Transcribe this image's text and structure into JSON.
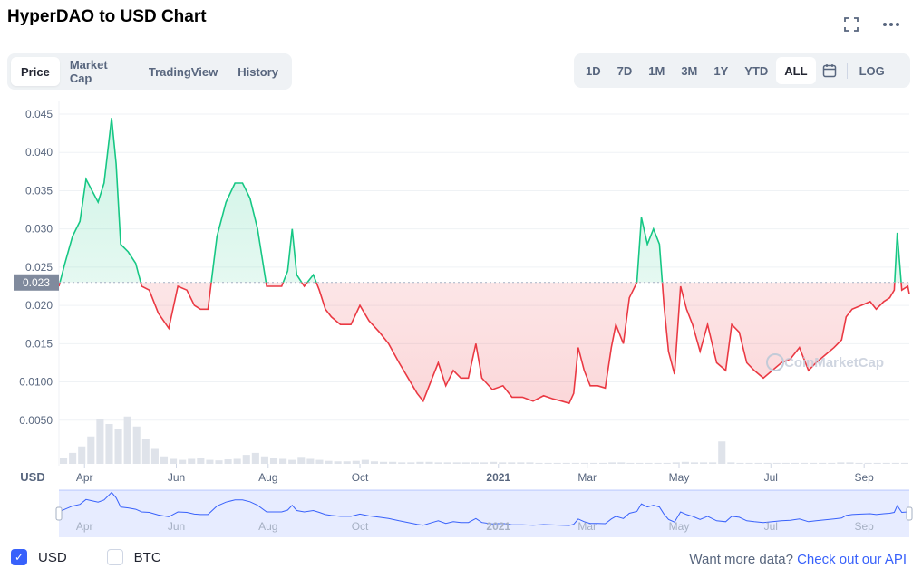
{
  "header": {
    "title": "HyperDAO to USD Chart",
    "expand_icon": "expand-icon",
    "more_icon": "more-icon"
  },
  "tabs": [
    {
      "label": "Price",
      "active": true
    },
    {
      "label": "Market Cap",
      "active": false
    },
    {
      "label": "TradingView",
      "active": false
    },
    {
      "label": "History",
      "active": false
    }
  ],
  "ranges": [
    {
      "label": "1D",
      "active": false
    },
    {
      "label": "7D",
      "active": false
    },
    {
      "label": "1M",
      "active": false
    },
    {
      "label": "3M",
      "active": false
    },
    {
      "label": "1Y",
      "active": false
    },
    {
      "label": "YTD",
      "active": false
    },
    {
      "label": "ALL",
      "active": true
    }
  ],
  "calendar_icon": "calendar-icon",
  "log_label": "LOG",
  "legend": {
    "usd_label": "USD",
    "usd_checked": true,
    "btc_label": "BTC",
    "btc_checked": false
  },
  "footer": {
    "prompt": "Want more data?",
    "link": "Check out our API"
  },
  "watermark": "CoinMarketCap",
  "colors": {
    "up": "#16c784",
    "down": "#ea3943",
    "brush": "#3861fb",
    "axis_badge": "#808a9d"
  },
  "chart_data": {
    "type": "line",
    "baseline": 0.023,
    "baseline_label": "0.023",
    "currency_label": "USD",
    "ylim": [
      0,
      0.047
    ],
    "yticks": [
      {
        "value": 0.045,
        "label": "0.045"
      },
      {
        "value": 0.04,
        "label": "0.040"
      },
      {
        "value": 0.035,
        "label": "0.035"
      },
      {
        "value": 0.03,
        "label": "0.030"
      },
      {
        "value": 0.025,
        "label": "0.025"
      },
      {
        "value": 0.02,
        "label": "0.020"
      },
      {
        "value": 0.015,
        "label": "0.015"
      },
      {
        "value": 0.01,
        "label": "0.0100"
      },
      {
        "value": 0.005,
        "label": "0.0050"
      }
    ],
    "x_start": "2020-03-15",
    "x_end": "2021-10-01",
    "xticks": [
      {
        "date": "2020-04-01",
        "label": "Apr",
        "bold": false
      },
      {
        "date": "2020-06-01",
        "label": "Jun",
        "bold": false
      },
      {
        "date": "2020-08-01",
        "label": "Aug",
        "bold": false
      },
      {
        "date": "2020-10-01",
        "label": "Oct",
        "bold": false
      },
      {
        "date": "2021-01-01",
        "label": "2021",
        "bold": true
      },
      {
        "date": "2021-03-01",
        "label": "Mar",
        "bold": false
      },
      {
        "date": "2021-05-01",
        "label": "May",
        "bold": false
      },
      {
        "date": "2021-07-01",
        "label": "Jul",
        "bold": false
      },
      {
        "date": "2021-09-01",
        "label": "Sep",
        "bold": false
      }
    ],
    "series": [
      {
        "name": "",
        "points": [
          [
            "2020-03-15",
            0.0225
          ],
          [
            "2020-03-19",
            0.0255
          ],
          [
            "2020-03-24",
            0.029
          ],
          [
            "2020-03-29",
            0.031
          ],
          [
            "2020-04-02",
            0.0365
          ],
          [
            "2020-04-06",
            0.035
          ],
          [
            "2020-04-10",
            0.0335
          ],
          [
            "2020-04-14",
            0.036
          ],
          [
            "2020-04-19",
            0.0445
          ],
          [
            "2020-04-22",
            0.0385
          ],
          [
            "2020-04-25",
            0.028
          ],
          [
            "2020-04-30",
            0.027
          ],
          [
            "2020-05-05",
            0.0255
          ],
          [
            "2020-05-09",
            0.0225
          ],
          [
            "2020-05-14",
            0.022
          ],
          [
            "2020-05-20",
            0.019
          ],
          [
            "2020-05-27",
            0.017
          ],
          [
            "2020-06-02",
            0.0225
          ],
          [
            "2020-06-08",
            0.022
          ],
          [
            "2020-06-13",
            0.02
          ],
          [
            "2020-06-17",
            0.0195
          ],
          [
            "2020-06-22",
            0.0195
          ],
          [
            "2020-06-28",
            0.029
          ],
          [
            "2020-07-04",
            0.0335
          ],
          [
            "2020-07-10",
            0.036
          ],
          [
            "2020-07-15",
            0.036
          ],
          [
            "2020-07-20",
            0.034
          ],
          [
            "2020-07-25",
            0.03
          ],
          [
            "2020-07-31",
            0.0225
          ],
          [
            "2020-08-05",
            0.0225
          ],
          [
            "2020-08-10",
            0.0225
          ],
          [
            "2020-08-14",
            0.0245
          ],
          [
            "2020-08-17",
            0.03
          ],
          [
            "2020-08-20",
            0.024
          ],
          [
            "2020-08-25",
            0.0225
          ],
          [
            "2020-08-31",
            0.024
          ],
          [
            "2020-09-04",
            0.022
          ],
          [
            "2020-09-08",
            0.0195
          ],
          [
            "2020-09-12",
            0.0185
          ],
          [
            "2020-09-18",
            0.0175
          ],
          [
            "2020-09-25",
            0.0175
          ],
          [
            "2020-10-01",
            0.02
          ],
          [
            "2020-10-07",
            0.018
          ],
          [
            "2020-10-14",
            0.0165
          ],
          [
            "2020-10-20",
            0.015
          ],
          [
            "2020-10-27",
            0.0125
          ],
          [
            "2020-11-02",
            0.0105
          ],
          [
            "2020-11-08",
            0.0085
          ],
          [
            "2020-11-12",
            0.0075
          ],
          [
            "2020-11-18",
            0.0105
          ],
          [
            "2020-11-22",
            0.0125
          ],
          [
            "2020-11-27",
            0.0095
          ],
          [
            "2020-12-02",
            0.0115
          ],
          [
            "2020-12-07",
            0.0105
          ],
          [
            "2020-12-12",
            0.0105
          ],
          [
            "2020-12-17",
            0.015
          ],
          [
            "2020-12-21",
            0.0105
          ],
          [
            "2020-12-28",
            0.009
          ],
          [
            "2021-01-04",
            0.0095
          ],
          [
            "2021-01-10",
            0.008
          ],
          [
            "2021-01-17",
            0.008
          ],
          [
            "2021-01-24",
            0.0075
          ],
          [
            "2021-01-31",
            0.0082
          ],
          [
            "2021-02-06",
            0.0078
          ],
          [
            "2021-02-12",
            0.0075
          ],
          [
            "2021-02-17",
            0.0072
          ],
          [
            "2021-02-20",
            0.0085
          ],
          [
            "2021-02-23",
            0.0145
          ],
          [
            "2021-02-27",
            0.0115
          ],
          [
            "2021-03-03",
            0.0095
          ],
          [
            "2021-03-08",
            0.0095
          ],
          [
            "2021-03-13",
            0.0092
          ],
          [
            "2021-03-17",
            0.0145
          ],
          [
            "2021-03-20",
            0.0175
          ],
          [
            "2021-03-25",
            0.015
          ],
          [
            "2021-03-29",
            0.021
          ],
          [
            "2021-04-03",
            0.023
          ],
          [
            "2021-04-06",
            0.0315
          ],
          [
            "2021-04-10",
            0.028
          ],
          [
            "2021-04-14",
            0.03
          ],
          [
            "2021-04-18",
            0.028
          ],
          [
            "2021-04-21",
            0.02
          ],
          [
            "2021-04-24",
            0.014
          ],
          [
            "2021-04-28",
            0.011
          ],
          [
            "2021-05-02",
            0.0225
          ],
          [
            "2021-05-06",
            0.0195
          ],
          [
            "2021-05-10",
            0.0175
          ],
          [
            "2021-05-15",
            0.014
          ],
          [
            "2021-05-20",
            0.0175
          ],
          [
            "2021-05-26",
            0.0125
          ],
          [
            "2021-06-01",
            0.0115
          ],
          [
            "2021-06-05",
            0.0175
          ],
          [
            "2021-06-10",
            0.0165
          ],
          [
            "2021-06-15",
            0.0125
          ],
          [
            "2021-06-20",
            0.0115
          ],
          [
            "2021-06-26",
            0.0105
          ],
          [
            "2021-07-02",
            0.0115
          ],
          [
            "2021-07-08",
            0.0125
          ],
          [
            "2021-07-14",
            0.013
          ],
          [
            "2021-07-20",
            0.0145
          ],
          [
            "2021-07-26",
            0.0115
          ],
          [
            "2021-07-31",
            0.0125
          ],
          [
            "2021-08-06",
            0.0135
          ],
          [
            "2021-08-12",
            0.0145
          ],
          [
            "2021-08-17",
            0.0155
          ],
          [
            "2021-08-20",
            0.0185
          ],
          [
            "2021-08-24",
            0.0195
          ],
          [
            "2021-08-30",
            0.02
          ],
          [
            "2021-09-05",
            0.0205
          ],
          [
            "2021-09-09",
            0.0195
          ],
          [
            "2021-09-14",
            0.0205
          ],
          [
            "2021-09-18",
            0.021
          ],
          [
            "2021-09-21",
            0.022
          ],
          [
            "2021-09-23",
            0.0295
          ],
          [
            "2021-09-26",
            0.022
          ],
          [
            "2021-09-30",
            0.0225
          ],
          [
            "2021-10-01",
            0.0215
          ]
        ]
      }
    ],
    "volume": [
      0.12,
      0.22,
      0.35,
      0.55,
      0.9,
      0.8,
      0.7,
      0.95,
      0.75,
      0.5,
      0.3,
      0.15,
      0.1,
      0.08,
      0.1,
      0.12,
      0.08,
      0.07,
      0.09,
      0.1,
      0.18,
      0.22,
      0.15,
      0.12,
      0.1,
      0.08,
      0.14,
      0.1,
      0.08,
      0.06,
      0.05,
      0.05,
      0.06,
      0.08,
      0.05,
      0.04,
      0.04,
      0.03,
      0.03,
      0.04,
      0.04,
      0.03,
      0.03,
      0.03,
      0.03,
      0.03,
      0.03,
      0.04,
      0.03,
      0.03,
      0.03,
      0.03,
      0.02,
      0.02,
      0.02,
      0.02,
      0.02,
      0.02,
      0.02,
      0.02,
      0.03,
      0.03,
      0.02,
      0.02,
      0.02,
      0.02,
      0.02,
      0.03,
      0.04,
      0.03,
      0.03,
      0.03,
      0.45,
      0.03,
      0.02,
      0.02,
      0.02,
      0.02,
      0.02,
      0.02,
      0.02,
      0.02,
      0.02,
      0.02,
      0.02,
      0.03,
      0.03,
      0.02,
      0.02,
      0.02,
      0.02,
      0.02,
      0.02
    ]
  }
}
